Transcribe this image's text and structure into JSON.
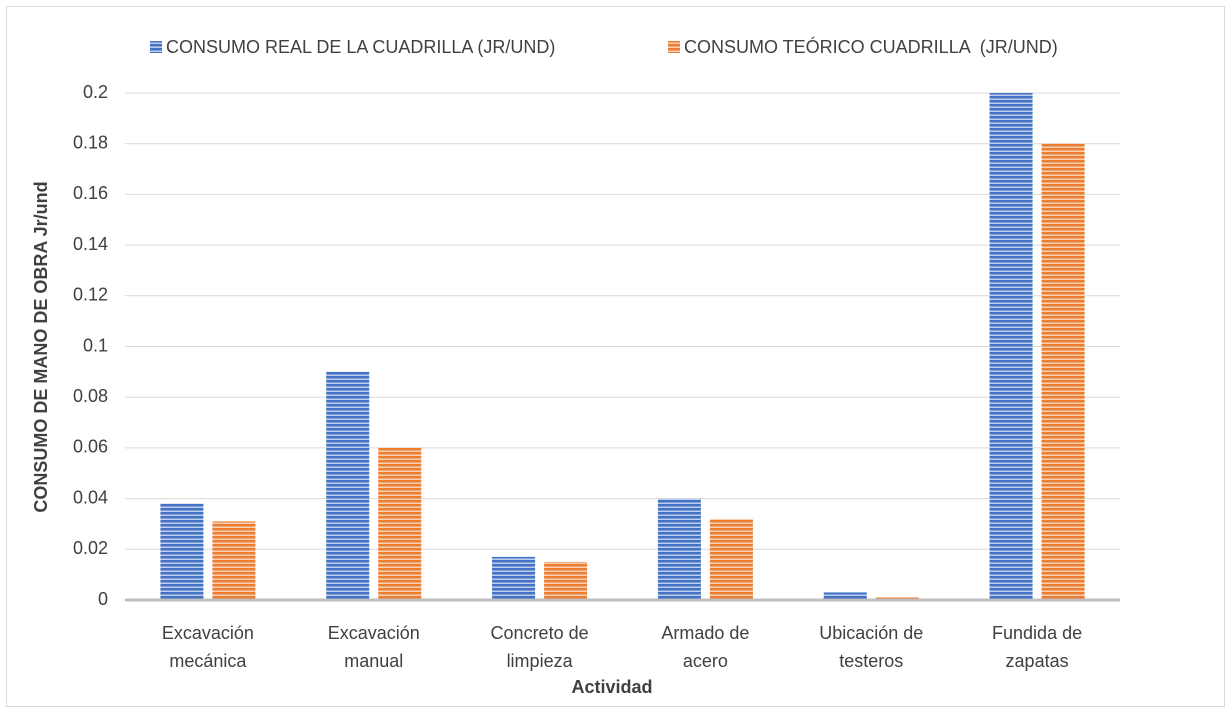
{
  "chart_data": {
    "type": "bar",
    "categories": [
      "Excavación mecánica",
      "Excavación manual",
      "Concreto de limpieza",
      "Armado de acero",
      "Ubicación de testeros",
      "Fundida de zapatas"
    ],
    "series": [
      {
        "name": "CONSUMO REAL DE LA CUADRILLA (JR/UND)",
        "color": "#4472c4",
        "values": [
          0.038,
          0.09,
          0.017,
          0.04,
          0.003,
          0.2
        ]
      },
      {
        "name": "CONSUMO TEÓRICO CUADRILLA  (JR/UND)",
        "color": "#ed7d31",
        "values": [
          0.031,
          0.06,
          0.015,
          0.032,
          0.001,
          0.18
        ]
      }
    ],
    "x_label": "Actividad",
    "y_label": "CONSUMO DE MANO DE OBRA Jr/und",
    "ylim": [
      0,
      0.2
    ],
    "yticks": [
      0,
      0.02,
      0.04,
      0.06,
      0.08,
      0.1,
      0.12,
      0.14,
      0.16,
      0.18,
      0.2
    ],
    "grid": true,
    "legend": "top"
  }
}
